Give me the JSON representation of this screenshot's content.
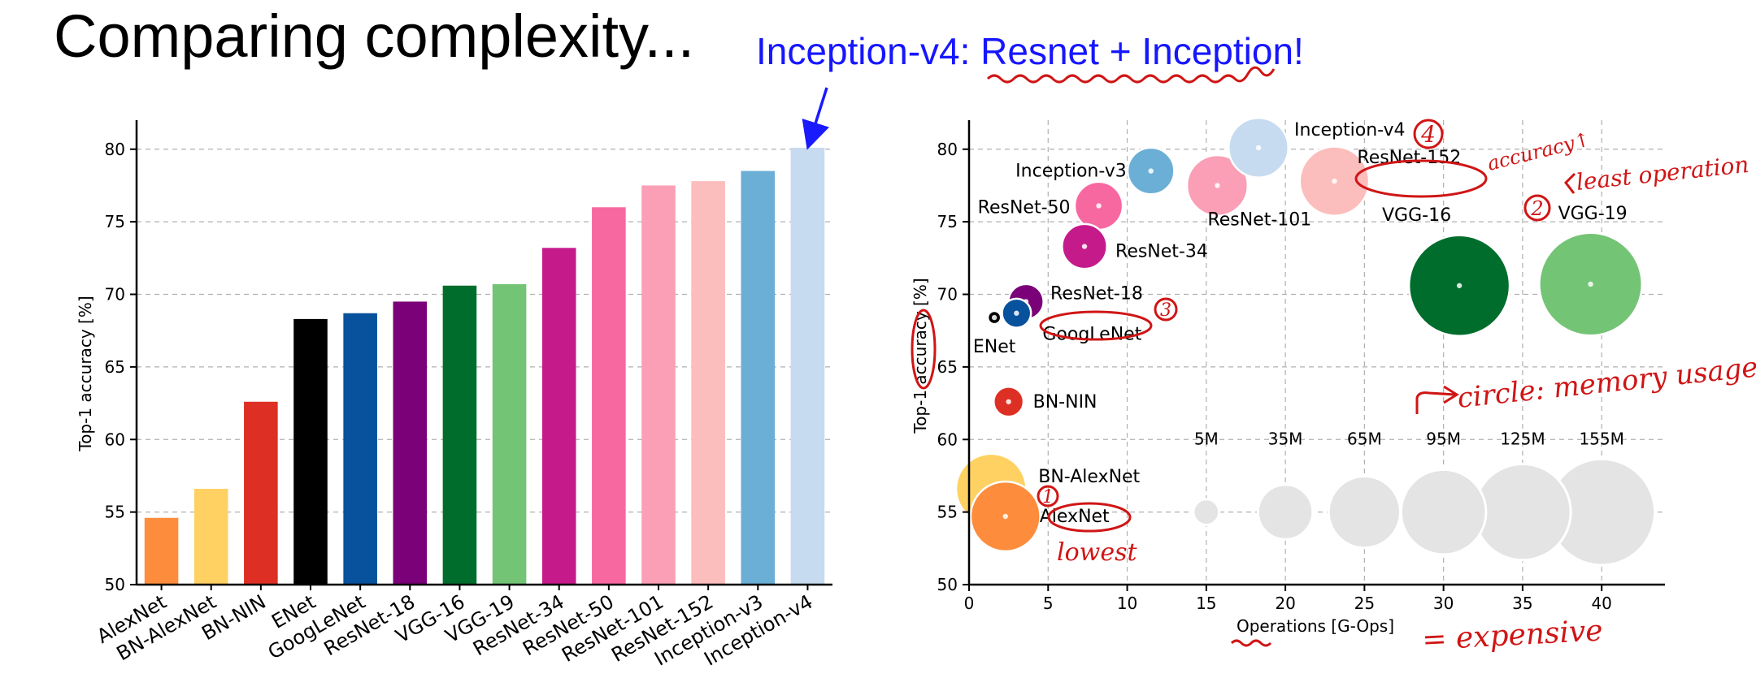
{
  "title": "Comparing complexity...",
  "headline": {
    "prefix": "Inception-v4: ",
    "highlight": "Resnet + Inception",
    "suffix": "!"
  },
  "colors": {
    "headline": "#1616ff",
    "annotation": "#d01515",
    "grid": "#b0b0b0"
  },
  "chart_data": [
    {
      "type": "bar",
      "ylabel": "Top-1 accuracy [%]",
      "xlabel": "",
      "ylim": [
        50,
        82
      ],
      "yticks": [
        50,
        55,
        60,
        65,
        70,
        75,
        80
      ],
      "grid": "horizontal-dashed",
      "categories": [
        "AlexNet",
        "BN-AlexNet",
        "BN-NIN",
        "ENet",
        "GoogLeNet",
        "ResNet-18",
        "VGG-16",
        "VGG-19",
        "ResNet-34",
        "ResNet-50",
        "ResNet-101",
        "ResNet-152",
        "Inception-v3",
        "Inception-v4"
      ],
      "values": [
        54.6,
        56.6,
        62.6,
        68.3,
        68.7,
        69.5,
        70.6,
        70.7,
        73.2,
        76.0,
        77.5,
        77.8,
        78.5,
        80.1
      ],
      "colors": [
        "#fd8d3c",
        "#fed162",
        "#dd2f24",
        "#000000",
        "#08519c",
        "#7a0177",
        "#006d2c",
        "#74c476",
        "#c51b8a",
        "#f768a1",
        "#fa9fb5",
        "#fcbdbd",
        "#6baed6",
        "#c6dbef"
      ],
      "annotations": [
        {
          "text": "",
          "target": "Inception-v4",
          "kind": "arrow"
        }
      ]
    },
    {
      "type": "scatter",
      "xlabel": "Operations [G-Ops]",
      "ylabel": "Top-1 accuracy [%]",
      "xlim": [
        0,
        44
      ],
      "ylim": [
        50,
        82
      ],
      "xticks": [
        0,
        5,
        10,
        15,
        20,
        25,
        30,
        35,
        40
      ],
      "yticks": [
        50,
        55,
        60,
        65,
        70,
        75,
        80
      ],
      "grid": "both-dashed",
      "size_encodes": "memory usage [M params]",
      "points": [
        {
          "name": "AlexNet",
          "x": 2.3,
          "y": 54.7,
          "params": 61,
          "color": "#fd8d3c"
        },
        {
          "name": "BN-AlexNet",
          "x": 1.4,
          "y": 56.6,
          "params": 62,
          "color": "#fed162"
        },
        {
          "name": "BN-NIN",
          "x": 2.5,
          "y": 62.6,
          "params": 7.6,
          "color": "#dd2f24"
        },
        {
          "name": "ENet",
          "x": 1.6,
          "y": 68.4,
          "params": 0.4,
          "color": "#000000"
        },
        {
          "name": "GoogLeNet",
          "x": 3.0,
          "y": 68.7,
          "params": 7,
          "color": "#08519c"
        },
        {
          "name": "ResNet-18",
          "x": 3.6,
          "y": 69.5,
          "params": 11.7,
          "color": "#7a0177"
        },
        {
          "name": "VGG-16",
          "x": 31.0,
          "y": 70.6,
          "params": 138,
          "color": "#006d2c"
        },
        {
          "name": "VGG-19",
          "x": 39.3,
          "y": 70.7,
          "params": 144,
          "color": "#74c476"
        },
        {
          "name": "ResNet-34",
          "x": 7.3,
          "y": 73.3,
          "params": 21.8,
          "color": "#c51b8a"
        },
        {
          "name": "ResNet-50",
          "x": 8.2,
          "y": 76.1,
          "params": 25.6,
          "color": "#f768a1"
        },
        {
          "name": "ResNet-101",
          "x": 15.7,
          "y": 77.5,
          "params": 44.5,
          "color": "#fa9fb5"
        },
        {
          "name": "ResNet-152",
          "x": 23.1,
          "y": 77.8,
          "params": 60.2,
          "color": "#fcbdbd"
        },
        {
          "name": "Inception-v3",
          "x": 11.5,
          "y": 78.5,
          "params": 23.8,
          "color": "#6baed6"
        },
        {
          "name": "Inception-v4",
          "x": 18.3,
          "y": 80.1,
          "params": 42.7,
          "color": "#c6dbef"
        }
      ],
      "size_legend": {
        "y": 55,
        "items": [
          {
            "label": "5M",
            "x": 15,
            "params": 5
          },
          {
            "label": "35M",
            "x": 20,
            "params": 35
          },
          {
            "label": "65M",
            "x": 25,
            "params": 65
          },
          {
            "label": "95M",
            "x": 30,
            "params": 95
          },
          {
            "label": "125M",
            "x": 35,
            "params": 125
          },
          {
            "label": "155M",
            "x": 40,
            "params": 155
          }
        ]
      }
    }
  ],
  "handwritten": {
    "n1": "1",
    "n2": "2",
    "n3": "3",
    "n4": "4",
    "lowest": "lowest",
    "accuracy": "accuracy↑",
    "least_operation": "least operation",
    "circle_memory": "circle: memory usage!",
    "expensive": "= expensive"
  }
}
